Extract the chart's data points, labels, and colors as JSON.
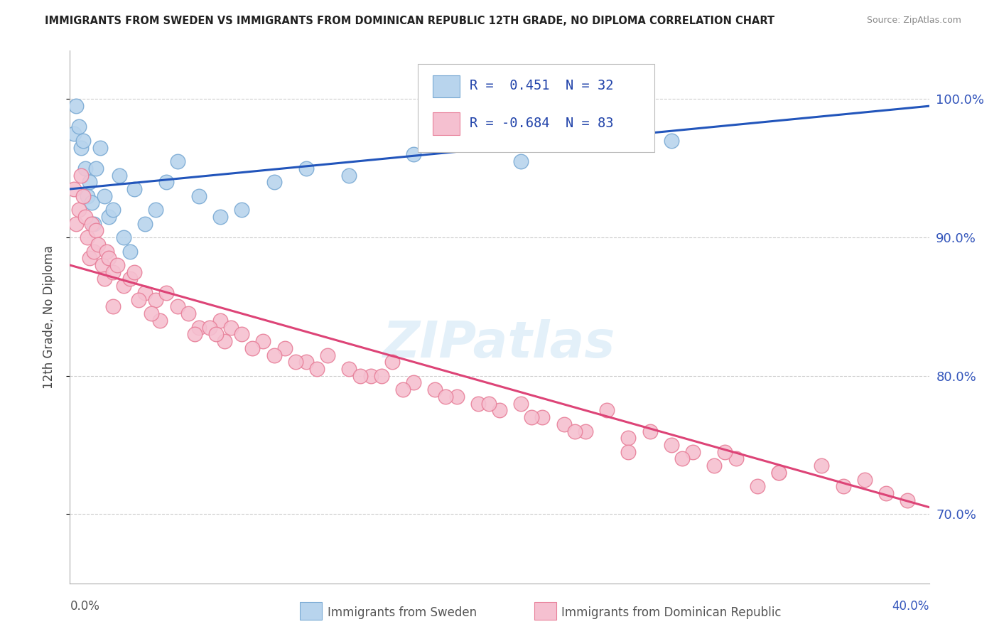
{
  "title": "IMMIGRANTS FROM SWEDEN VS IMMIGRANTS FROM DOMINICAN REPUBLIC 12TH GRADE, NO DIPLOMA CORRELATION CHART",
  "source": "Source: ZipAtlas.com",
  "ylabel": "12th Grade, No Diploma",
  "xlim": [
    0.0,
    40.0
  ],
  "ylim": [
    65.0,
    103.5
  ],
  "yticks": [
    70,
    80,
    90,
    100
  ],
  "blue_R": 0.451,
  "blue_N": 32,
  "pink_R": -0.684,
  "pink_N": 83,
  "blue_color": "#b8d4ed",
  "blue_edge": "#7aaad4",
  "pink_color": "#f5c0d0",
  "pink_edge": "#e8809a",
  "blue_line_color": "#2255bb",
  "pink_line_color": "#dd4477",
  "grid_color": "#cccccc",
  "bg_color": "#ffffff",
  "title_color": "#222222",
  "legend_text_color": "#2244aa",
  "watermark": "ZIPatlas",
  "blue_line_y0": 93.5,
  "blue_line_y1": 99.5,
  "pink_line_y0": 88.0,
  "pink_line_y1": 70.5,
  "blue_points_x": [
    0.2,
    0.3,
    0.4,
    0.5,
    0.6,
    0.7,
    0.8,
    0.9,
    1.0,
    1.1,
    1.2,
    1.4,
    1.6,
    1.8,
    2.0,
    2.3,
    2.5,
    2.8,
    3.0,
    3.5,
    4.0,
    4.5,
    5.0,
    6.0,
    7.0,
    8.0,
    9.5,
    11.0,
    13.0,
    16.0,
    21.0,
    28.0
  ],
  "blue_points_y": [
    97.5,
    99.5,
    98.0,
    96.5,
    97.0,
    95.0,
    93.0,
    94.0,
    92.5,
    91.0,
    95.0,
    96.5,
    93.0,
    91.5,
    92.0,
    94.5,
    90.0,
    89.0,
    93.5,
    91.0,
    92.0,
    94.0,
    95.5,
    93.0,
    91.5,
    92.0,
    94.0,
    95.0,
    94.5,
    96.0,
    95.5,
    97.0
  ],
  "pink_points_x": [
    0.2,
    0.3,
    0.4,
    0.5,
    0.6,
    0.7,
    0.8,
    0.9,
    1.0,
    1.1,
    1.2,
    1.3,
    1.5,
    1.6,
    1.7,
    1.8,
    2.0,
    2.2,
    2.5,
    2.8,
    3.0,
    3.5,
    4.0,
    4.5,
    5.0,
    5.5,
    6.0,
    7.0,
    7.5,
    8.0,
    9.0,
    10.0,
    11.0,
    12.0,
    13.0,
    14.0,
    15.0,
    16.0,
    17.0,
    18.0,
    19.0,
    20.0,
    21.0,
    22.0,
    23.0,
    24.0,
    25.0,
    26.0,
    27.0,
    28.0,
    29.0,
    30.0,
    31.0,
    32.0,
    33.0,
    35.0,
    37.0,
    39.0,
    3.2,
    4.2,
    5.8,
    6.5,
    7.2,
    8.5,
    9.5,
    10.5,
    11.5,
    13.5,
    15.5,
    17.5,
    19.5,
    21.5,
    23.5,
    26.0,
    28.5,
    30.5,
    33.0,
    36.0,
    38.0,
    2.0,
    3.8,
    6.8,
    14.5
  ],
  "pink_points_y": [
    93.5,
    91.0,
    92.0,
    94.5,
    93.0,
    91.5,
    90.0,
    88.5,
    91.0,
    89.0,
    90.5,
    89.5,
    88.0,
    87.0,
    89.0,
    88.5,
    87.5,
    88.0,
    86.5,
    87.0,
    87.5,
    86.0,
    85.5,
    86.0,
    85.0,
    84.5,
    83.5,
    84.0,
    83.5,
    83.0,
    82.5,
    82.0,
    81.0,
    81.5,
    80.5,
    80.0,
    81.0,
    79.5,
    79.0,
    78.5,
    78.0,
    77.5,
    78.0,
    77.0,
    76.5,
    76.0,
    77.5,
    75.5,
    76.0,
    75.0,
    74.5,
    73.5,
    74.0,
    72.0,
    73.0,
    73.5,
    72.5,
    71.0,
    85.5,
    84.0,
    83.0,
    83.5,
    82.5,
    82.0,
    81.5,
    81.0,
    80.5,
    80.0,
    79.0,
    78.5,
    78.0,
    77.0,
    76.0,
    74.5,
    74.0,
    74.5,
    73.0,
    72.0,
    71.5,
    85.0,
    84.5,
    83.0,
    80.0
  ]
}
